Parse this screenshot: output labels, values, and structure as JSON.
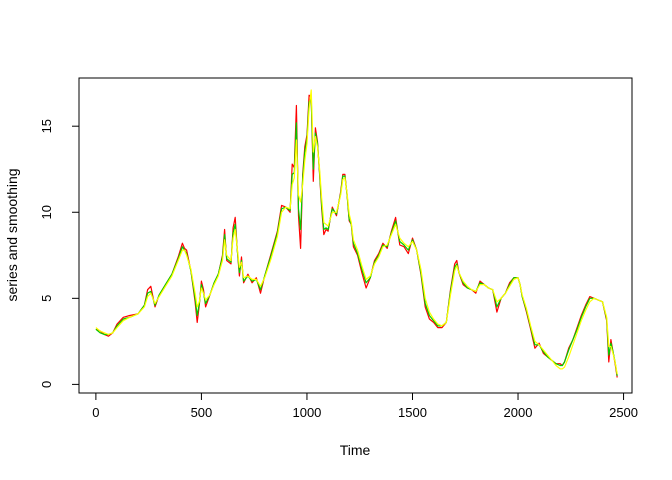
{
  "chart_data": {
    "type": "line",
    "title": "",
    "xlabel": "Time",
    "ylabel": "series and smoothing",
    "xlim": [
      -80,
      2540
    ],
    "ylim": [
      -0.5,
      17.8
    ],
    "x_ticks": [
      0,
      500,
      1000,
      1500,
      2000,
      2500
    ],
    "y_ticks": [
      0,
      5,
      10,
      15
    ],
    "grid": false,
    "legend": "none",
    "series": [
      {
        "color": "#ff0000",
        "x": [
          0,
          20,
          40,
          60,
          80,
          100,
          130,
          160,
          200,
          230,
          245,
          260,
          280,
          300,
          330,
          360,
          390,
          410,
          420,
          430,
          450,
          470,
          480,
          490,
          500,
          510,
          520,
          540,
          560,
          580,
          600,
          610,
          620,
          640,
          650,
          660,
          670,
          680,
          690,
          700,
          720,
          740,
          760,
          780,
          800,
          830,
          860,
          880,
          900,
          920,
          930,
          940,
          950,
          960,
          970,
          980,
          990,
          1000,
          1010,
          1020,
          1030,
          1040,
          1050,
          1060,
          1070,
          1080,
          1090,
          1100,
          1120,
          1140,
          1160,
          1170,
          1180,
          1190,
          1200,
          1210,
          1220,
          1240,
          1260,
          1280,
          1300,
          1320,
          1340,
          1360,
          1380,
          1400,
          1420,
          1440,
          1460,
          1480,
          1500,
          1520,
          1540,
          1560,
          1580,
          1600,
          1620,
          1640,
          1660,
          1680,
          1700,
          1710,
          1720,
          1740,
          1760,
          1780,
          1800,
          1820,
          1840,
          1860,
          1880,
          1900,
          1920,
          1940,
          1960,
          1980,
          2000,
          2010,
          2020,
          2040,
          2060,
          2080,
          2100,
          2120,
          2140,
          2160,
          2180,
          2200,
          2210,
          2220,
          2240,
          2260,
          2280,
          2300,
          2320,
          2340,
          2360,
          2380,
          2400,
          2420,
          2430,
          2440,
          2450,
          2460,
          2470
        ],
        "values": [
          3.2,
          3.1,
          2.9,
          2.8,
          3.0,
          3.5,
          3.9,
          4.0,
          4.1,
          4.6,
          5.5,
          5.7,
          4.5,
          5.2,
          5.8,
          6.4,
          7.4,
          8.2,
          7.9,
          7.8,
          6.6,
          4.8,
          3.6,
          4.6,
          6.0,
          5.5,
          4.5,
          5.2,
          5.9,
          6.4,
          7.5,
          9.0,
          7.2,
          7.0,
          9.1,
          9.7,
          7.8,
          6.3,
          7.4,
          5.9,
          6.4,
          5.9,
          6.2,
          5.3,
          6.3,
          7.6,
          8.9,
          10.4,
          10.3,
          10.0,
          12.8,
          12.6,
          16.2,
          9.8,
          7.9,
          12.2,
          13.8,
          14.5,
          16.8,
          16.7,
          11.8,
          14.9,
          14.1,
          12.2,
          10.2,
          8.7,
          9.0,
          8.9,
          10.3,
          9.8,
          11.2,
          12.2,
          12.2,
          11.0,
          9.5,
          9.3,
          8.0,
          7.5,
          6.5,
          5.6,
          6.2,
          7.2,
          7.6,
          8.2,
          7.9,
          8.9,
          9.7,
          8.1,
          8.0,
          7.6,
          8.5,
          7.8,
          6.4,
          4.5,
          3.8,
          3.6,
          3.3,
          3.3,
          3.6,
          5.5,
          7.0,
          7.2,
          6.5,
          5.8,
          5.6,
          5.5,
          5.3,
          6.0,
          5.8,
          5.6,
          5.5,
          4.2,
          5.0,
          5.3,
          5.9,
          6.2,
          6.2,
          5.8,
          5.1,
          4.2,
          3.2,
          2.1,
          2.4,
          1.8,
          1.6,
          1.4,
          1.2,
          1.2,
          1.1,
          1.3,
          2.1,
          2.6,
          3.3,
          4.0,
          4.6,
          5.1,
          5.0,
          4.9,
          4.8,
          3.7,
          1.3,
          2.6,
          1.9,
          1.2,
          0.4
        ]
      },
      {
        "color": "#00cd00",
        "x": [
          0,
          20,
          40,
          60,
          80,
          100,
          130,
          160,
          200,
          230,
          245,
          260,
          280,
          300,
          330,
          360,
          390,
          410,
          420,
          430,
          450,
          470,
          480,
          490,
          500,
          510,
          520,
          540,
          560,
          580,
          600,
          610,
          620,
          640,
          650,
          660,
          670,
          680,
          690,
          700,
          720,
          740,
          760,
          780,
          800,
          830,
          860,
          880,
          900,
          920,
          930,
          940,
          950,
          960,
          970,
          980,
          990,
          1000,
          1010,
          1020,
          1030,
          1040,
          1050,
          1060,
          1070,
          1080,
          1090,
          1100,
          1120,
          1140,
          1160,
          1170,
          1180,
          1190,
          1200,
          1210,
          1220,
          1240,
          1260,
          1280,
          1300,
          1320,
          1340,
          1360,
          1380,
          1400,
          1420,
          1440,
          1460,
          1480,
          1500,
          1520,
          1540,
          1560,
          1580,
          1600,
          1620,
          1640,
          1660,
          1680,
          1700,
          1710,
          1720,
          1740,
          1760,
          1780,
          1800,
          1820,
          1840,
          1860,
          1880,
          1900,
          1920,
          1940,
          1960,
          1980,
          2000,
          2010,
          2020,
          2040,
          2060,
          2080,
          2100,
          2120,
          2140,
          2160,
          2180,
          2200,
          2210,
          2220,
          2240,
          2260,
          2280,
          2300,
          2320,
          2340,
          2360,
          2380,
          2400,
          2420,
          2430,
          2440,
          2450,
          2460,
          2470
        ],
        "values": [
          3.2,
          3.0,
          2.9,
          2.9,
          3.0,
          3.4,
          3.8,
          3.9,
          4.1,
          4.6,
          5.3,
          5.4,
          4.6,
          5.2,
          5.8,
          6.4,
          7.3,
          8.0,
          7.8,
          7.6,
          6.6,
          5.0,
          4.0,
          4.7,
          5.8,
          5.3,
          4.7,
          5.2,
          5.9,
          6.4,
          7.4,
          8.7,
          7.3,
          7.1,
          8.8,
          9.3,
          7.8,
          6.5,
          7.2,
          6.0,
          6.3,
          6.0,
          6.1,
          5.5,
          6.3,
          7.5,
          8.8,
          10.2,
          10.3,
          10.1,
          12.2,
          12.3,
          15.2,
          10.2,
          9.0,
          12.0,
          13.5,
          14.3,
          16.4,
          16.6,
          12.5,
          14.6,
          14.0,
          12.3,
          10.4,
          9.0,
          9.1,
          9.0,
          10.2,
          9.9,
          11.1,
          12.1,
          12.1,
          11.0,
          9.6,
          9.3,
          8.2,
          7.6,
          6.7,
          5.9,
          6.2,
          7.1,
          7.5,
          8.1,
          8.0,
          8.8,
          9.5,
          8.3,
          8.1,
          7.8,
          8.4,
          7.8,
          6.5,
          4.7,
          4.0,
          3.7,
          3.4,
          3.4,
          3.6,
          5.4,
          6.8,
          7.0,
          6.5,
          5.9,
          5.6,
          5.5,
          5.4,
          5.9,
          5.8,
          5.6,
          5.5,
          4.5,
          5.0,
          5.3,
          5.8,
          6.2,
          6.2,
          5.8,
          5.1,
          4.3,
          3.3,
          2.3,
          2.3,
          1.9,
          1.6,
          1.4,
          1.2,
          1.1,
          1.1,
          1.3,
          2.0,
          2.6,
          3.2,
          3.9,
          4.5,
          5.0,
          5.0,
          4.9,
          4.8,
          3.8,
          1.7,
          2.4,
          1.9,
          1.3,
          0.5
        ]
      },
      {
        "color": "#ffff00",
        "x": [
          0,
          20,
          40,
          60,
          80,
          100,
          130,
          160,
          200,
          230,
          245,
          260,
          280,
          300,
          330,
          360,
          390,
          410,
          420,
          430,
          450,
          470,
          480,
          490,
          500,
          510,
          520,
          540,
          560,
          580,
          600,
          610,
          620,
          640,
          650,
          660,
          670,
          680,
          690,
          700,
          720,
          740,
          760,
          780,
          800,
          830,
          860,
          880,
          900,
          920,
          930,
          940,
          950,
          960,
          970,
          980,
          990,
          1000,
          1010,
          1020,
          1030,
          1040,
          1050,
          1060,
          1070,
          1080,
          1090,
          1100,
          1120,
          1140,
          1160,
          1170,
          1180,
          1190,
          1200,
          1210,
          1220,
          1240,
          1260,
          1280,
          1300,
          1320,
          1340,
          1360,
          1380,
          1400,
          1420,
          1440,
          1460,
          1480,
          1500,
          1520,
          1540,
          1560,
          1580,
          1600,
          1620,
          1640,
          1660,
          1680,
          1700,
          1710,
          1720,
          1740,
          1760,
          1780,
          1800,
          1820,
          1840,
          1860,
          1880,
          1900,
          1920,
          1940,
          1960,
          1980,
          2000,
          2010,
          2020,
          2040,
          2060,
          2080,
          2100,
          2120,
          2140,
          2160,
          2180,
          2200,
          2210,
          2220,
          2240,
          2260,
          2280,
          2300,
          2320,
          2340,
          2360,
          2380,
          2400,
          2420,
          2430,
          2440,
          2450,
          2460,
          2470
        ],
        "values": [
          3.3,
          3.1,
          3.0,
          2.9,
          3.0,
          3.3,
          3.7,
          3.9,
          4.1,
          4.5,
          5.1,
          5.3,
          4.7,
          5.1,
          5.7,
          6.3,
          7.2,
          7.8,
          7.8,
          7.5,
          6.7,
          5.3,
          4.5,
          4.8,
          5.6,
          5.3,
          4.9,
          5.2,
          5.8,
          6.3,
          7.2,
          8.4,
          7.5,
          7.2,
          8.5,
          9.0,
          7.9,
          6.8,
          7.1,
          6.2,
          6.3,
          6.1,
          6.1,
          5.7,
          6.2,
          7.3,
          8.6,
          10.0,
          10.3,
          10.2,
          11.6,
          12.0,
          14.2,
          11.0,
          10.6,
          11.6,
          13.0,
          14.0,
          16.0,
          17.1,
          13.5,
          14.4,
          13.8,
          12.5,
          10.8,
          9.4,
          9.3,
          9.2,
          10.0,
          10.0,
          11.0,
          11.9,
          12.0,
          11.1,
          9.9,
          9.4,
          8.4,
          7.8,
          6.9,
          6.1,
          6.3,
          7.0,
          7.4,
          8.0,
          8.1,
          8.7,
          9.3,
          8.5,
          8.2,
          8.0,
          8.3,
          7.8,
          6.7,
          5.0,
          4.2,
          3.8,
          3.5,
          3.4,
          3.6,
          5.2,
          6.6,
          6.9,
          6.5,
          6.0,
          5.7,
          5.5,
          5.4,
          5.8,
          5.8,
          5.6,
          5.5,
          4.8,
          5.0,
          5.3,
          5.7,
          6.1,
          6.2,
          5.8,
          5.2,
          4.4,
          3.4,
          2.5,
          2.3,
          2.0,
          1.7,
          1.4,
          1.1,
          0.9,
          0.9,
          1.0,
          1.6,
          2.3,
          3.0,
          3.7,
          4.3,
          4.8,
          5.0,
          4.9,
          4.8,
          3.9,
          2.2,
          2.2,
          1.8,
          1.3,
          0.6
        ]
      }
    ]
  }
}
